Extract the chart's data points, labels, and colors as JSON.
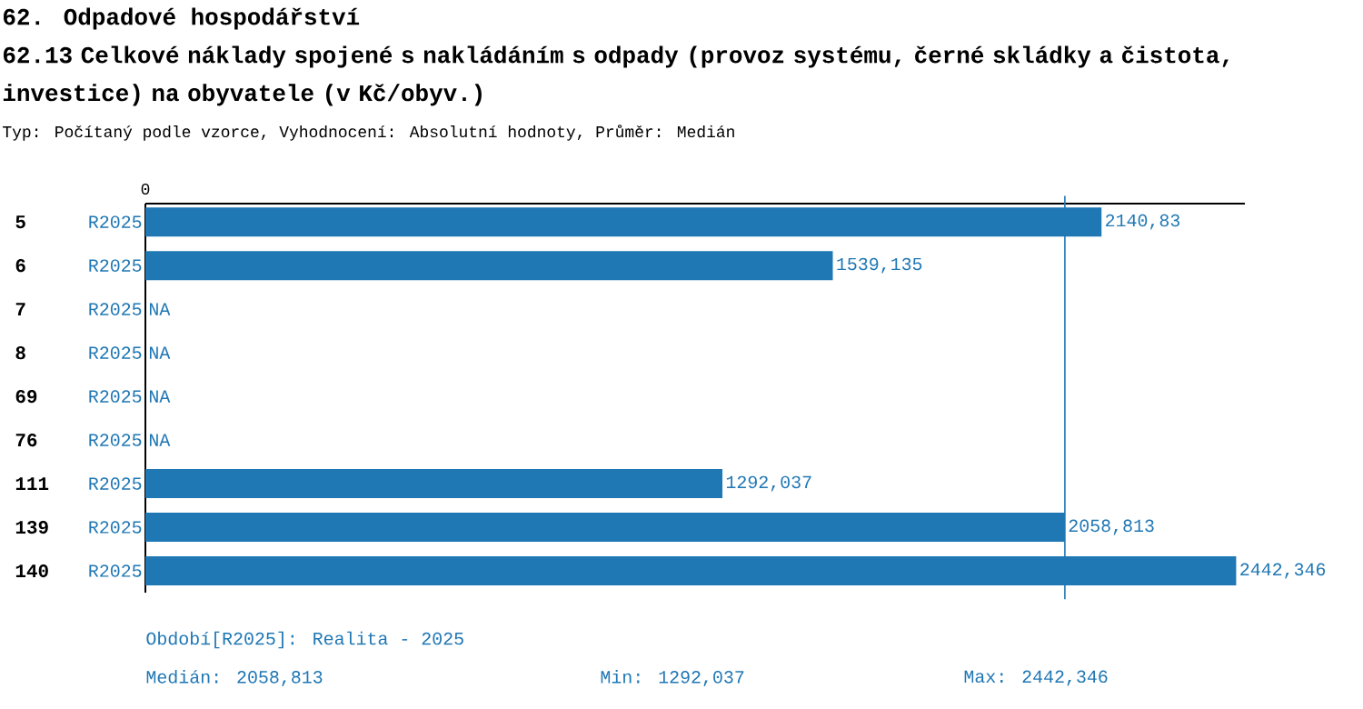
{
  "chart_data": {
    "type": "bar",
    "orientation": "horizontal",
    "title": "62. Odpadové hospodářství",
    "subtitle": "62.13 Celkové náklady spojené s nakládáním s odpady (provoz systému, černé skládky a čistota, investice) na obyvatele (v Kč/obyv.)",
    "categories": [
      "5",
      "6",
      "7",
      "8",
      "69",
      "76",
      "111",
      "139",
      "140"
    ],
    "series": [
      {
        "name": "R2025",
        "color": "#1f77b4",
        "values": [
          2140.83,
          1539.135,
          null,
          null,
          null,
          null,
          1292.037,
          2058.813,
          2442.346
        ],
        "value_labels": [
          "2140,83",
          "1539,135",
          "NA",
          "NA",
          "NA",
          "NA",
          "1292,037",
          "2058,813",
          "2442,346"
        ]
      }
    ],
    "ref_lines": [
      {
        "axis": "x",
        "value": 2058.813,
        "color": "#1f77b4"
      }
    ],
    "annotations": [
      "0",
      "Typ: Počítaný podle vzorce, Vyhodnocení: Absolutní hodnoty, Průměr: Medián",
      "Období[R2025]: Realita - 2025",
      "Medián: 2058,813",
      "Min: 1292,037",
      "Max: 2442,346"
    ]
  }
}
